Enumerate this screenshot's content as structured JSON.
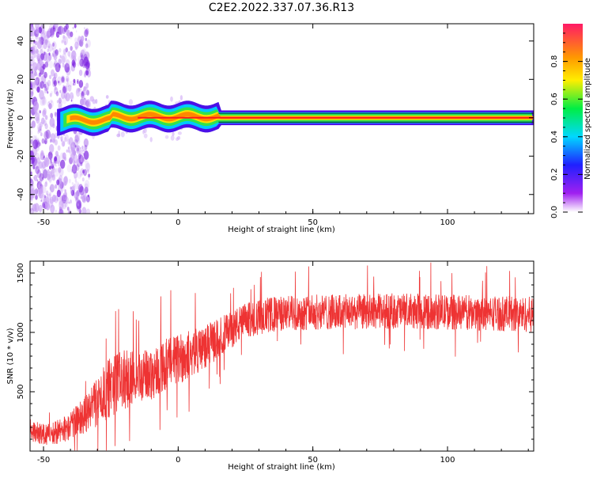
{
  "title": "C2E2.2022.337.07.36.R13",
  "chart_data": [
    {
      "type": "heatmap",
      "xlabel": "Height of straight line (km)",
      "ylabel": "Frequency (Hz)",
      "xlim": [
        -55,
        132
      ],
      "ylim": [
        -50,
        49
      ],
      "xticks": [
        -50,
        0,
        50,
        100
      ],
      "yticks": [
        -40,
        -20,
        0,
        20,
        40
      ],
      "colorbar": {
        "label": "Normalized spectral amplitude",
        "range": [
          0.0,
          1.0
        ],
        "ticks": [
          0.0,
          0.2,
          0.4,
          0.6,
          0.8
        ],
        "colormap": "white-purple-blue-cyan-green-yellow-orange-red"
      },
      "features": {
        "noise_region_x": [
          -55,
          -33
        ],
        "tone_frequency": 0,
        "tone_start_x": -45,
        "peak_line_color": "#ff1a1a",
        "outline_color": "#0a4d1e"
      }
    },
    {
      "type": "line",
      "xlabel": "Height of straight line (km)",
      "ylabel": "SNR (10 * v/v)",
      "xlim": [
        -55,
        132
      ],
      "ylim": [
        0,
        1600
      ],
      "xticks": [
        -50,
        0,
        50,
        100
      ],
      "yticks": [
        500,
        1000,
        1500
      ],
      "color": "#ee3333",
      "envelope": {
        "x": [
          -55,
          -50,
          -45,
          -40,
          -35,
          -30,
          -25,
          -20,
          -15,
          -10,
          -5,
          0,
          5,
          10,
          15,
          20,
          25,
          30,
          35,
          40,
          50,
          60,
          80,
          100,
          120,
          132
        ],
        "mean": [
          180,
          140,
          160,
          210,
          300,
          420,
          550,
          600,
          620,
          650,
          720,
          780,
          820,
          880,
          950,
          1030,
          1100,
          1130,
          1150,
          1160,
          1170,
          1170,
          1180,
          1170,
          1160,
          1150
        ],
        "spread": [
          110,
          90,
          100,
          120,
          160,
          220,
          260,
          250,
          220,
          220,
          220,
          220,
          200,
          180,
          170,
          160,
          150,
          150,
          150,
          150,
          150,
          150,
          150,
          150,
          150,
          150
        ]
      }
    }
  ]
}
